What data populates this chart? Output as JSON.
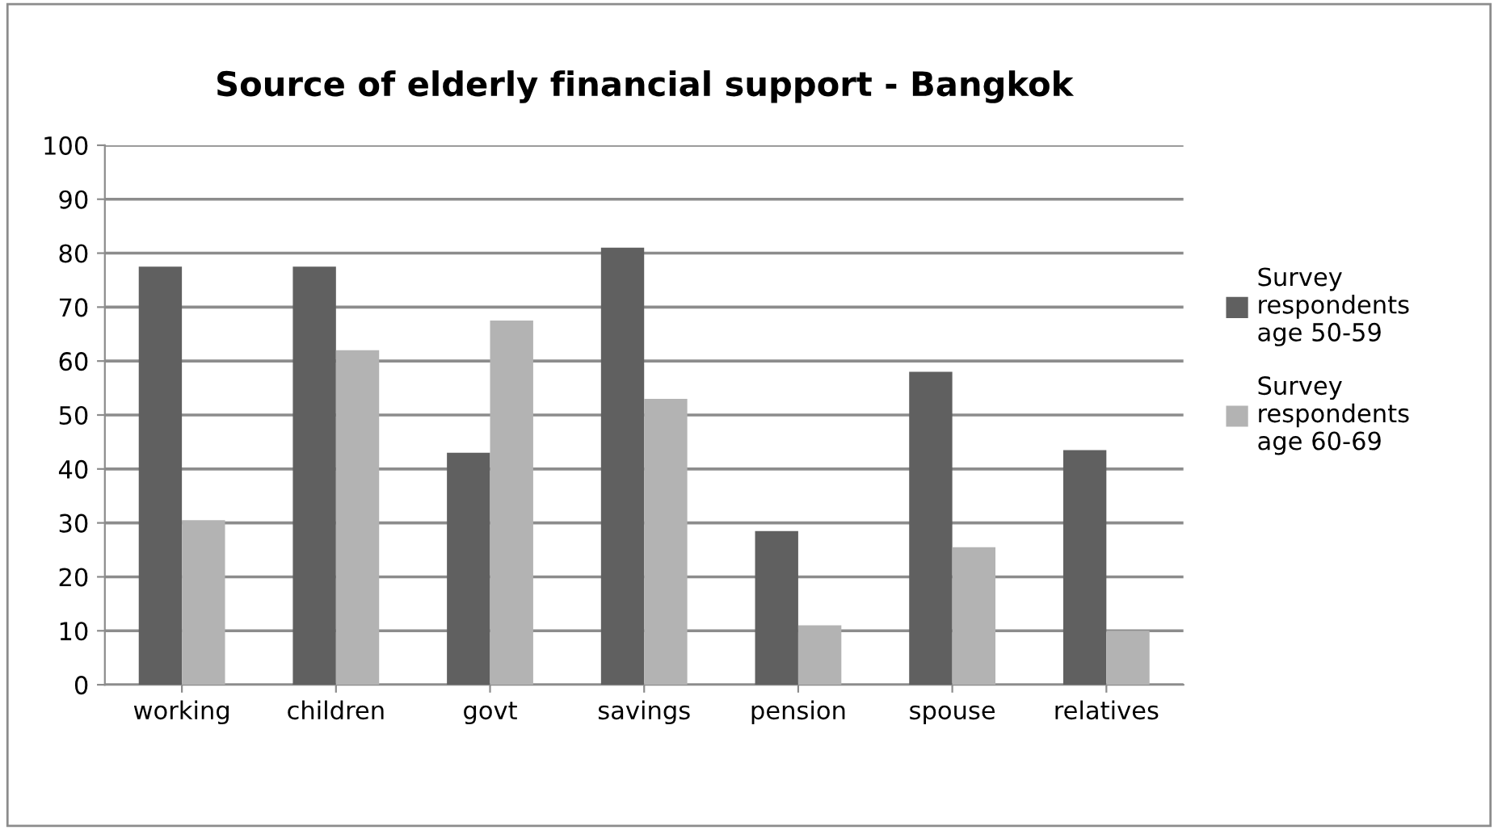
{
  "chart_data": {
    "type": "bar",
    "title": "Source of elderly financial support - Bangkok",
    "categories": [
      "working",
      "children",
      "govt",
      "savings",
      "pension",
      "spouse",
      "relatives"
    ],
    "series": [
      {
        "name": "Survey\nrespondents\nage 50-59",
        "color": "#606060",
        "values": [
          77.5,
          77.5,
          43,
          81,
          28.5,
          58,
          43.5
        ]
      },
      {
        "name": "Survey\nrespondents\nage 60-69",
        "color": "#b3b3b3",
        "values": [
          30.5,
          62,
          67.5,
          53,
          11,
          25.5,
          10
        ]
      }
    ],
    "ylim": [
      0,
      100
    ],
    "yticks": [
      0,
      10,
      20,
      30,
      40,
      50,
      60,
      70,
      80,
      90,
      100
    ],
    "grid": "y",
    "legend": "right"
  }
}
